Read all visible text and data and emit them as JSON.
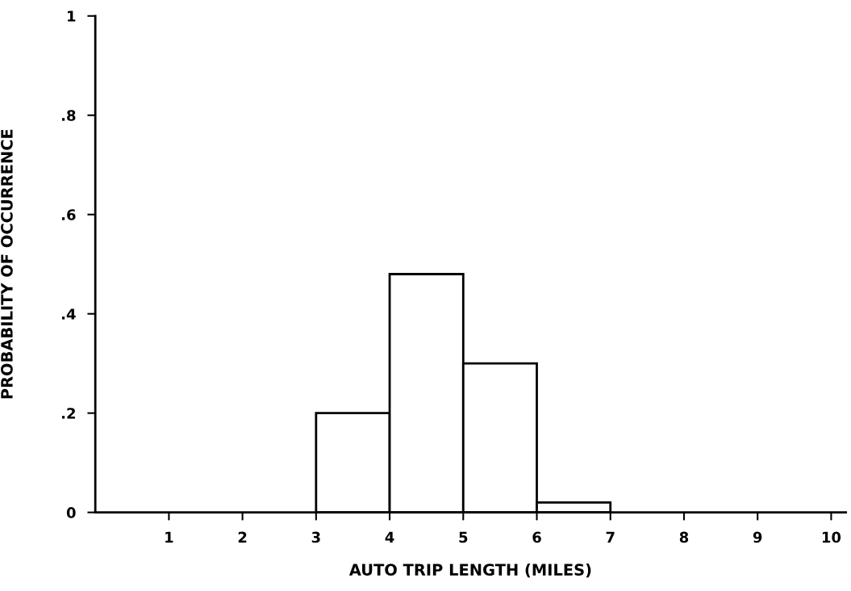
{
  "chart_data": {
    "type": "histogram",
    "xlabel": "AUTO TRIP LENGTH (MILES)",
    "ylabel": "PROBABILITY OF OCCURRENCE",
    "bins": [
      3,
      4,
      5,
      6,
      7
    ],
    "values": [
      0.2,
      0.48,
      0.3,
      0.02
    ],
    "color": "#ffffff",
    "xlim": [
      0,
      10.2
    ],
    "ylim": [
      0,
      1
    ],
    "xticks": [
      1,
      2,
      3,
      4,
      5,
      6,
      7,
      8,
      9,
      10
    ],
    "yticks": [
      0,
      {
        "value": 0.2,
        "label": ".2"
      },
      {
        "value": 0.4,
        "label": ".4"
      },
      {
        "value": 0.6,
        "label": ".6"
      },
      {
        "value": 0.8,
        "label": ".8"
      },
      1
    ],
    "grid": false,
    "legend": false
  }
}
